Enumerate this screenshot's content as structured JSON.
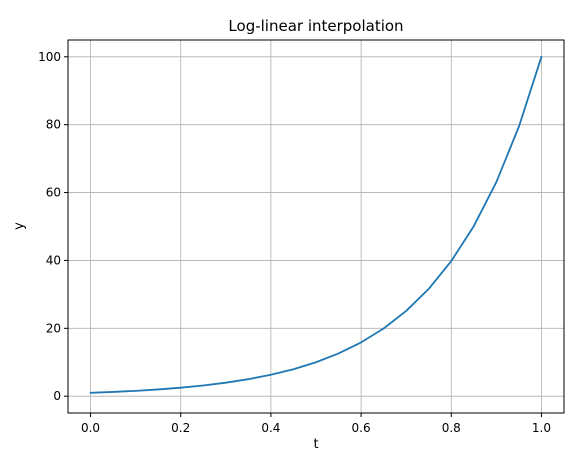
{
  "chart_data": {
    "type": "line",
    "title": "Log-linear interpolation",
    "xlabel": "t",
    "ylabel": "y",
    "xlim": [
      -0.05,
      1.05
    ],
    "ylim": [
      -4.95,
      104.95
    ],
    "grid": true,
    "x_ticks": [
      0.0,
      0.2,
      0.4,
      0.6,
      0.8,
      1.0
    ],
    "x_tick_labels": [
      "0.0",
      "0.2",
      "0.4",
      "0.6",
      "0.8",
      "1.0"
    ],
    "y_ticks": [
      0,
      20,
      40,
      60,
      80,
      100
    ],
    "y_tick_labels": [
      "0",
      "20",
      "40",
      "60",
      "80",
      "100"
    ],
    "series": [
      {
        "color": "#1f77b4",
        "x": [
          0.0,
          0.05,
          0.1,
          0.15,
          0.2,
          0.25,
          0.3,
          0.35,
          0.4,
          0.45,
          0.5,
          0.55,
          0.6,
          0.65,
          0.7,
          0.75,
          0.8,
          0.85,
          0.9,
          0.95,
          1.0
        ],
        "y": [
          1.0,
          1.26,
          1.58,
          1.99,
          2.51,
          3.16,
          3.98,
          5.01,
          6.31,
          7.94,
          10.0,
          12.59,
          15.85,
          19.95,
          25.12,
          31.62,
          39.81,
          50.12,
          63.1,
          79.43,
          100.0
        ]
      }
    ]
  },
  "colors": {
    "grid": "#b0b0b0",
    "axis": "#000000",
    "line": "#1f77b4"
  }
}
